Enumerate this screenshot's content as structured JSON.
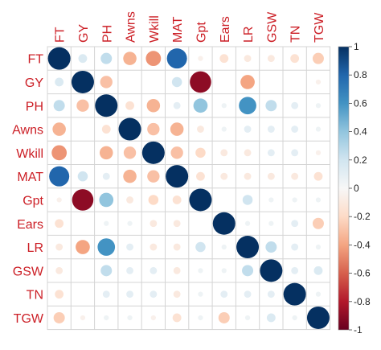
{
  "chart_data": {
    "type": "heatmap",
    "variables": [
      "FT",
      "GY",
      "PH",
      "Awns",
      "Wkill",
      "MAT",
      "Gpt",
      "Ears",
      "LR",
      "GSW",
      "TN",
      "TGW"
    ],
    "matrix": [
      [
        1.0,
        0.15,
        0.25,
        -0.35,
        -0.45,
        0.8,
        -0.05,
        -0.15,
        -0.1,
        -0.1,
        -0.15,
        -0.25
      ],
      [
        0.15,
        1.0,
        -0.3,
        0.0,
        0.0,
        0.2,
        -0.9,
        0.0,
        -0.4,
        0.0,
        0.0,
        -0.05
      ],
      [
        0.25,
        -0.3,
        1.0,
        -0.15,
        -0.35,
        0.1,
        0.4,
        0.05,
        0.6,
        0.25,
        0.1,
        0.05
      ],
      [
        -0.35,
        0.0,
        -0.15,
        1.0,
        -0.3,
        -0.35,
        -0.1,
        0.05,
        0.1,
        0.1,
        0.1,
        0.05
      ],
      [
        -0.45,
        0.0,
        -0.35,
        -0.3,
        1.0,
        -0.3,
        -0.2,
        -0.1,
        -0.1,
        0.1,
        0.1,
        -0.05
      ],
      [
        0.8,
        0.2,
        0.1,
        -0.35,
        -0.3,
        1.0,
        -0.15,
        -0.1,
        -0.1,
        -0.1,
        -0.1,
        -0.15
      ],
      [
        -0.05,
        -0.9,
        0.4,
        -0.1,
        -0.2,
        -0.15,
        1.0,
        0.0,
        0.2,
        0.05,
        0.05,
        0.05
      ],
      [
        -0.15,
        0.0,
        0.05,
        0.05,
        -0.1,
        -0.1,
        0.0,
        1.0,
        0.05,
        0.05,
        0.1,
        -0.25
      ],
      [
        -0.1,
        -0.4,
        0.6,
        0.1,
        -0.1,
        -0.1,
        0.2,
        0.05,
        1.0,
        0.25,
        0.1,
        0.05
      ],
      [
        -0.1,
        0.0,
        0.25,
        0.1,
        0.1,
        -0.1,
        0.05,
        0.05,
        0.25,
        1.0,
        0.1,
        0.15
      ],
      [
        -0.15,
        0.0,
        0.1,
        0.1,
        0.1,
        -0.1,
        0.05,
        0.1,
        0.1,
        0.1,
        1.0,
        0.05
      ],
      [
        -0.25,
        -0.05,
        0.05,
        0.05,
        -0.05,
        -0.15,
        0.05,
        -0.25,
        0.05,
        0.15,
        0.05,
        1.0
      ]
    ],
    "colorbar": {
      "range": [
        -1,
        1
      ],
      "ticks": [
        "1",
        "0.8",
        "0.6",
        "0.4",
        "0.2",
        "0",
        "-0.2",
        "-0.4",
        "-0.6",
        "-0.8",
        "-1"
      ]
    },
    "colors": {
      "negative_strong": "#67001f",
      "negative_mid": "#d6604d",
      "neutral": "#f7f7f7",
      "positive_mid": "#4393c3",
      "positive_strong": "#053061",
      "label": "#cc1f26",
      "grid": "#d4d4d4"
    }
  }
}
